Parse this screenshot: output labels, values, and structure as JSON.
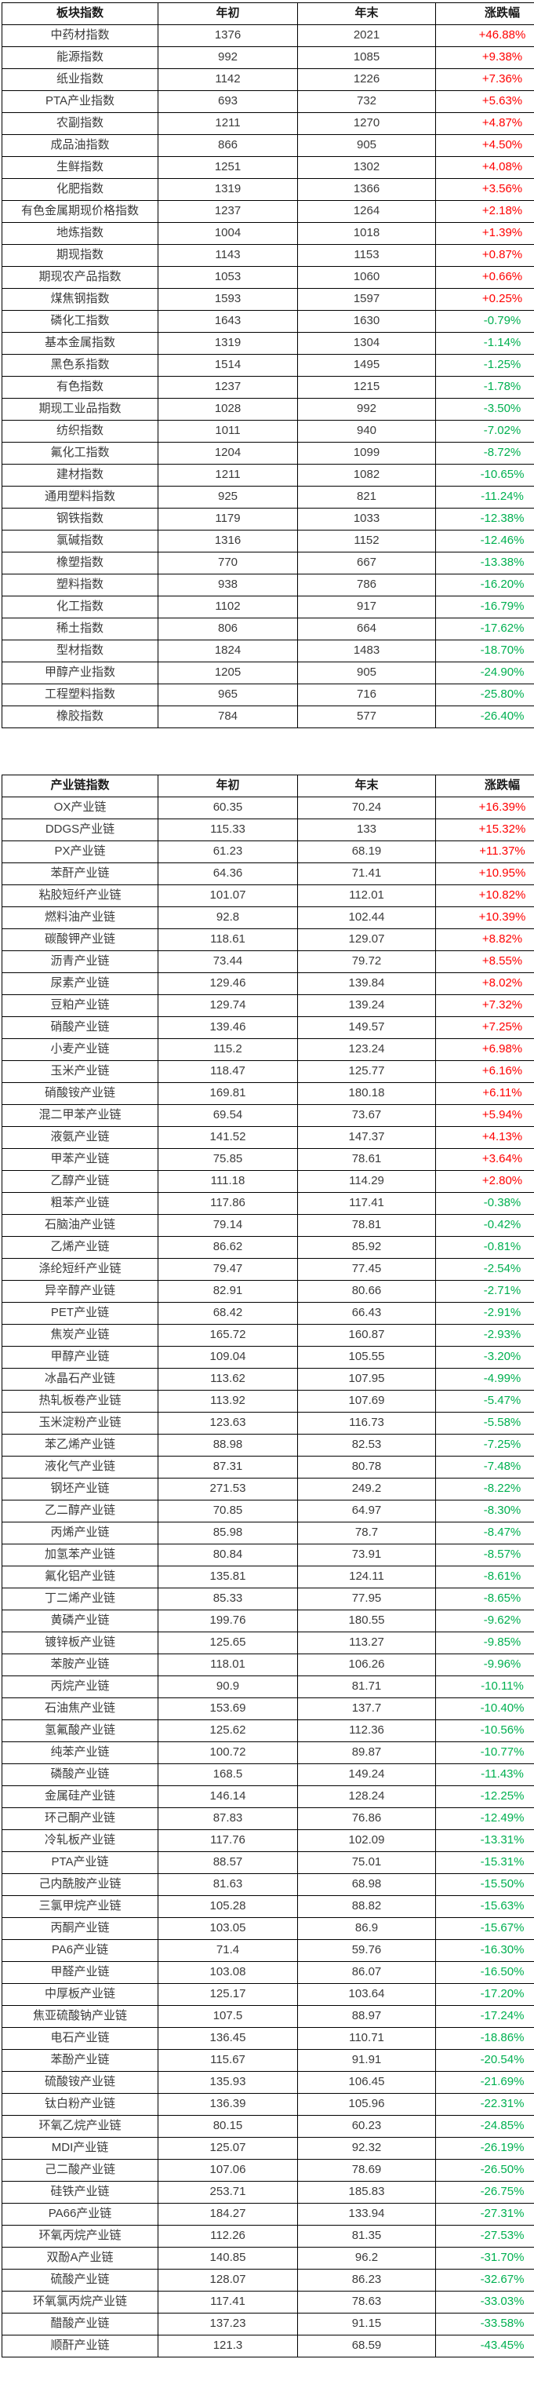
{
  "colors": {
    "positive": "#ff0000",
    "negative": "#00b050",
    "border": "#000000",
    "text": "#3b3b3b"
  },
  "table1": {
    "headers": [
      "板块指数",
      "年初",
      "年末",
      "涨跌幅"
    ],
    "rows": [
      [
        "中药材指数",
        "1376",
        "2021",
        "+46.88%"
      ],
      [
        "能源指数",
        "992",
        "1085",
        "+9.38%"
      ],
      [
        "纸业指数",
        "1142",
        "1226",
        "+7.36%"
      ],
      [
        "PTA产业指数",
        "693",
        "732",
        "+5.63%"
      ],
      [
        "农副指数",
        "1211",
        "1270",
        "+4.87%"
      ],
      [
        "成品油指数",
        "866",
        "905",
        "+4.50%"
      ],
      [
        "生鲜指数",
        "1251",
        "1302",
        "+4.08%"
      ],
      [
        "化肥指数",
        "1319",
        "1366",
        "+3.56%"
      ],
      [
        "有色金属期现价格指数",
        "1237",
        "1264",
        "+2.18%"
      ],
      [
        "地炼指数",
        "1004",
        "1018",
        "+1.39%"
      ],
      [
        "期现指数",
        "1143",
        "1153",
        "+0.87%"
      ],
      [
        "期现农产品指数",
        "1053",
        "1060",
        "+0.66%"
      ],
      [
        "煤焦钢指数",
        "1593",
        "1597",
        "+0.25%"
      ],
      [
        "磷化工指数",
        "1643",
        "1630",
        "-0.79%"
      ],
      [
        "基本金属指数",
        "1319",
        "1304",
        "-1.14%"
      ],
      [
        "黑色系指数",
        "1514",
        "1495",
        "-1.25%"
      ],
      [
        "有色指数",
        "1237",
        "1215",
        "-1.78%"
      ],
      [
        "期现工业品指数",
        "1028",
        "992",
        "-3.50%"
      ],
      [
        "纺织指数",
        "1011",
        "940",
        "-7.02%"
      ],
      [
        "氟化工指数",
        "1204",
        "1099",
        "-8.72%"
      ],
      [
        "建材指数",
        "1211",
        "1082",
        "-10.65%"
      ],
      [
        "通用塑料指数",
        "925",
        "821",
        "-11.24%"
      ],
      [
        "钢铁指数",
        "1179",
        "1033",
        "-12.38%"
      ],
      [
        "氯碱指数",
        "1316",
        "1152",
        "-12.46%"
      ],
      [
        "橡塑指数",
        "770",
        "667",
        "-13.38%"
      ],
      [
        "塑料指数",
        "938",
        "786",
        "-16.20%"
      ],
      [
        "化工指数",
        "1102",
        "917",
        "-16.79%"
      ],
      [
        "稀土指数",
        "806",
        "664",
        "-17.62%"
      ],
      [
        "型材指数",
        "1824",
        "1483",
        "-18.70%"
      ],
      [
        "甲醇产业指数",
        "1205",
        "905",
        "-24.90%"
      ],
      [
        "工程塑料指数",
        "965",
        "716",
        "-25.80%"
      ],
      [
        "橡胶指数",
        "784",
        "577",
        "-26.40%"
      ]
    ]
  },
  "table2": {
    "headers": [
      "产业链指数",
      "年初",
      "年末",
      "涨跌幅"
    ],
    "rows": [
      [
        "OX产业链",
        "60.35",
        "70.24",
        "+16.39%"
      ],
      [
        "DDGS产业链",
        "115.33",
        "133",
        "+15.32%"
      ],
      [
        "PX产业链",
        "61.23",
        "68.19",
        "+11.37%"
      ],
      [
        "苯酐产业链",
        "64.36",
        "71.41",
        "+10.95%"
      ],
      [
        "粘胶短纤产业链",
        "101.07",
        "112.01",
        "+10.82%"
      ],
      [
        "燃料油产业链",
        "92.8",
        "102.44",
        "+10.39%"
      ],
      [
        "碳酸钾产业链",
        "118.61",
        "129.07",
        "+8.82%"
      ],
      [
        "沥青产业链",
        "73.44",
        "79.72",
        "+8.55%"
      ],
      [
        "尿素产业链",
        "129.46",
        "139.84",
        "+8.02%"
      ],
      [
        "豆粕产业链",
        "129.74",
        "139.24",
        "+7.32%"
      ],
      [
        "硝酸产业链",
        "139.46",
        "149.57",
        "+7.25%"
      ],
      [
        "小麦产业链",
        "115.2",
        "123.24",
        "+6.98%"
      ],
      [
        "玉米产业链",
        "118.47",
        "125.77",
        "+6.16%"
      ],
      [
        "硝酸铵产业链",
        "169.81",
        "180.18",
        "+6.11%"
      ],
      [
        "混二甲苯产业链",
        "69.54",
        "73.67",
        "+5.94%"
      ],
      [
        "液氨产业链",
        "141.52",
        "147.37",
        "+4.13%"
      ],
      [
        "甲苯产业链",
        "75.85",
        "78.61",
        "+3.64%"
      ],
      [
        "乙醇产业链",
        "111.18",
        "114.29",
        "+2.80%"
      ],
      [
        "粗苯产业链",
        "117.86",
        "117.41",
        "-0.38%"
      ],
      [
        "石脑油产业链",
        "79.14",
        "78.81",
        "-0.42%"
      ],
      [
        "乙烯产业链",
        "86.62",
        "85.92",
        "-0.81%"
      ],
      [
        "涤纶短纤产业链",
        "79.47",
        "77.45",
        "-2.54%"
      ],
      [
        "异辛醇产业链",
        "82.91",
        "80.66",
        "-2.71%"
      ],
      [
        "PET产业链",
        "68.42",
        "66.43",
        "-2.91%"
      ],
      [
        "焦炭产业链",
        "165.72",
        "160.87",
        "-2.93%"
      ],
      [
        "甲醇产业链",
        "109.04",
        "105.55",
        "-3.20%"
      ],
      [
        "冰晶石产业链",
        "113.62",
        "107.95",
        "-4.99%"
      ],
      [
        "热轧板卷产业链",
        "113.92",
        "107.69",
        "-5.47%"
      ],
      [
        "玉米淀粉产业链",
        "123.63",
        "116.73",
        "-5.58%"
      ],
      [
        "苯乙烯产业链",
        "88.98",
        "82.53",
        "-7.25%"
      ],
      [
        "液化气产业链",
        "87.31",
        "80.78",
        "-7.48%"
      ],
      [
        "钢坯产业链",
        "271.53",
        "249.2",
        "-8.22%"
      ],
      [
        "乙二醇产业链",
        "70.85",
        "64.97",
        "-8.30%"
      ],
      [
        "丙烯产业链",
        "85.98",
        "78.7",
        "-8.47%"
      ],
      [
        "加氢苯产业链",
        "80.84",
        "73.91",
        "-8.57%"
      ],
      [
        "氟化铝产业链",
        "135.81",
        "124.11",
        "-8.61%"
      ],
      [
        "丁二烯产业链",
        "85.33",
        "77.95",
        "-8.65%"
      ],
      [
        "黄磷产业链",
        "199.76",
        "180.55",
        "-9.62%"
      ],
      [
        "镀锌板产业链",
        "125.65",
        "113.27",
        "-9.85%"
      ],
      [
        "苯胺产业链",
        "118.01",
        "106.26",
        "-9.96%"
      ],
      [
        "丙烷产业链",
        "90.9",
        "81.71",
        "-10.11%"
      ],
      [
        "石油焦产业链",
        "153.69",
        "137.7",
        "-10.40%"
      ],
      [
        "氢氟酸产业链",
        "125.62",
        "112.36",
        "-10.56%"
      ],
      [
        "纯苯产业链",
        "100.72",
        "89.87",
        "-10.77%"
      ],
      [
        "磷酸产业链",
        "168.5",
        "149.24",
        "-11.43%"
      ],
      [
        "金属硅产业链",
        "146.14",
        "128.24",
        "-12.25%"
      ],
      [
        "环己酮产业链",
        "87.83",
        "76.86",
        "-12.49%"
      ],
      [
        "冷轧板产业链",
        "117.76",
        "102.09",
        "-13.31%"
      ],
      [
        "PTA产业链",
        "88.57",
        "75.01",
        "-15.31%"
      ],
      [
        "己内酰胺产业链",
        "81.63",
        "68.98",
        "-15.50%"
      ],
      [
        "三氯甲烷产业链",
        "105.28",
        "88.82",
        "-15.63%"
      ],
      [
        "丙酮产业链",
        "103.05",
        "86.9",
        "-15.67%"
      ],
      [
        "PA6产业链",
        "71.4",
        "59.76",
        "-16.30%"
      ],
      [
        "甲醛产业链",
        "103.08",
        "86.07",
        "-16.50%"
      ],
      [
        "中厚板产业链",
        "125.17",
        "103.64",
        "-17.20%"
      ],
      [
        "焦亚硫酸钠产业链",
        "107.5",
        "88.97",
        "-17.24%"
      ],
      [
        "电石产业链",
        "136.45",
        "110.71",
        "-18.86%"
      ],
      [
        "苯酚产业链",
        "115.67",
        "91.91",
        "-20.54%"
      ],
      [
        "硫酸铵产业链",
        "135.93",
        "106.45",
        "-21.69%"
      ],
      [
        "钛白粉产业链",
        "136.39",
        "105.96",
        "-22.31%"
      ],
      [
        "环氧乙烷产业链",
        "80.15",
        "60.23",
        "-24.85%"
      ],
      [
        "MDI产业链",
        "125.07",
        "92.32",
        "-26.19%"
      ],
      [
        "己二酸产业链",
        "107.06",
        "78.69",
        "-26.50%"
      ],
      [
        "硅铁产业链",
        "253.71",
        "185.83",
        "-26.75%"
      ],
      [
        "PA66产业链",
        "184.27",
        "133.94",
        "-27.31%"
      ],
      [
        "环氧丙烷产业链",
        "112.26",
        "81.35",
        "-27.53%"
      ],
      [
        "双酚A产业链",
        "140.85",
        "96.2",
        "-31.70%"
      ],
      [
        "硫酸产业链",
        "128.07",
        "86.23",
        "-32.67%"
      ],
      [
        "环氧氯丙烷产业链",
        "117.41",
        "78.63",
        "-33.03%"
      ],
      [
        "醋酸产业链",
        "137.23",
        "91.15",
        "-33.58%"
      ],
      [
        "顺酐产业链",
        "121.3",
        "68.59",
        "-43.45%"
      ]
    ]
  }
}
